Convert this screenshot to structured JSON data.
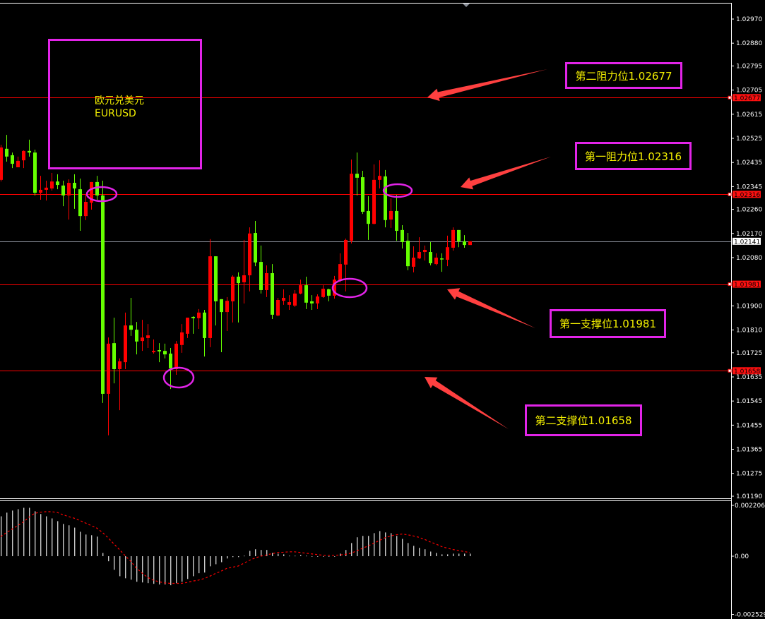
{
  "symbol": {
    "name_cn": "欧元兑美元",
    "name": "EURUSD"
  },
  "annotations": {
    "resistance_2": "第二阻力位1.02677",
    "resistance_1": "第一阻力位1.02316",
    "support_1": "第一支撑位1.01981",
    "support_2": "第二支撑位1.01658"
  },
  "colors": {
    "bull": "#ff0000",
    "bear": "#66ff00",
    "level_line": "#ff0000",
    "bid_line": "#8a8f99",
    "annotation_border": "#e224e8",
    "annotation_text": "#f2ee00",
    "macd_histogram": "#c8c8c8",
    "macd_signal": "#ff0000"
  },
  "price_axis": {
    "ticks": [
      "1.02970",
      "1.02880",
      "1.02795",
      "1.02705",
      "1.02615",
      "1.02525",
      "1.02435",
      "1.02345",
      "1.02260",
      "1.02170",
      "1.02080",
      "1.01900",
      "1.01810",
      "1.01725",
      "1.01635",
      "1.01545",
      "1.01455",
      "1.01365",
      "1.01275",
      "1.01190"
    ],
    "levels": [
      "1.02677",
      "1.02316",
      "1.01981",
      "1.01658"
    ],
    "current": "1.02141"
  },
  "macd_axis": {
    "ticks": [
      "0.002206",
      "0.00",
      "-0.002529"
    ]
  },
  "chart_data": {
    "type": "candlestick",
    "title": "",
    "ylim": [
      1.0119,
      1.0297
    ],
    "grid": false,
    "up_color_meaning": "red candles rise, green candles fall",
    "levels": [
      1.02677,
      1.02316,
      1.01981,
      1.01658
    ],
    "last_price": 1.02141,
    "ohlc": [
      [
        1.0237,
        1.02501,
        1.02364,
        1.02491
      ],
      [
        1.02486,
        1.02538,
        1.02438,
        1.02457
      ],
      [
        1.02462,
        1.02472,
        1.02414,
        1.0243
      ],
      [
        1.02417,
        1.02457,
        1.02417,
        1.02441
      ],
      [
        1.02443,
        1.0248,
        1.02414,
        1.02478
      ],
      [
        1.02478,
        1.0252,
        1.02457,
        1.02472
      ],
      [
        1.02472,
        1.02483,
        1.02312,
        1.02322
      ],
      [
        1.02322,
        1.02385,
        1.02296,
        1.02333
      ],
      [
        1.02333,
        1.02367,
        1.02293,
        1.02341
      ],
      [
        1.02338,
        1.02396,
        1.0233,
        1.02364
      ],
      [
        1.02364,
        1.02391,
        1.02335,
        1.02351
      ],
      [
        1.02349,
        1.02367,
        1.02272,
        1.02312
      ],
      [
        1.02312,
        1.02372,
        1.02222,
        1.02359
      ],
      [
        1.02359,
        1.02391,
        1.02262,
        1.02338
      ],
      [
        1.02335,
        1.02375,
        1.0218,
        1.02235
      ],
      [
        1.02235,
        1.02317,
        1.0222,
        1.02288
      ],
      [
        1.02285,
        1.02362,
        1.02259,
        1.02362
      ],
      [
        1.02362,
        1.02385,
        1.02296,
        1.02312
      ],
      [
        1.02312,
        1.02367,
        1.01538,
        1.01572
      ],
      [
        1.01572,
        1.01782,
        1.01417,
        1.01759
      ],
      [
        1.01761,
        1.01856,
        1.01611,
        1.01664
      ],
      [
        1.01664,
        1.01704,
        1.01511,
        1.01693
      ],
      [
        1.0169,
        1.01875,
        1.01664,
        1.01827
      ],
      [
        1.01827,
        1.0193,
        1.01788,
        1.01811
      ],
      [
        1.01811,
        1.0184,
        1.01719,
        1.01767
      ],
      [
        1.01769,
        1.01848,
        1.01732,
        1.01782
      ],
      [
        1.0178,
        1.01832,
        1.01743,
        1.0179
      ],
      [
        1.01727,
        1.01775,
        1.01722,
        1.01732
      ],
      [
        1.01735,
        1.01761,
        1.0169,
        1.0173
      ],
      [
        1.01732,
        1.01759,
        1.01704,
        1.01719
      ],
      [
        1.01722,
        1.01743,
        1.0159,
        1.01667
      ],
      [
        1.01664,
        1.01769,
        1.01643,
        1.01759
      ],
      [
        1.01754,
        1.01832,
        1.01725,
        1.01801
      ],
      [
        1.01796,
        1.01856,
        1.0178,
        1.01856
      ],
      [
        1.01859,
        1.01861,
        1.01796,
        1.01854
      ],
      [
        1.01854,
        1.01888,
        1.01814,
        1.01875
      ],
      [
        1.01875,
        1.01885,
        1.01711,
        1.0178
      ],
      [
        1.0178,
        1.02149,
        1.01746,
        1.02085
      ],
      [
        1.02085,
        1.02085,
        1.01827,
        1.01917
      ],
      [
        1.01925,
        1.01925,
        1.01727,
        1.01877
      ],
      [
        1.01877,
        1.01933,
        1.01806,
        1.01919
      ],
      [
        1.01917,
        1.02014,
        1.01838,
        1.02009
      ],
      [
        1.02009,
        1.02025,
        1.01838,
        1.01985
      ],
      [
        1.01988,
        1.02146,
        1.01909,
        1.02014
      ],
      [
        1.02014,
        1.02193,
        1.01954,
        1.0217
      ],
      [
        1.02172,
        1.02217,
        1.02048,
        1.02062
      ],
      [
        1.02064,
        1.02125,
        1.01946,
        1.01959
      ],
      [
        1.01959,
        1.02051,
        1.01933,
        1.02022
      ],
      [
        1.02022,
        1.02056,
        1.01851,
        1.01867
      ],
      [
        1.01864,
        1.0193,
        1.01861,
        1.01922
      ],
      [
        1.01919,
        1.01962,
        1.01904,
        1.0193
      ],
      [
        1.01904,
        1.0194,
        1.01885,
        1.01914
      ],
      [
        1.01901,
        1.01959,
        1.01896,
        1.01946
      ],
      [
        1.01946,
        1.01998,
        1.01943,
        1.01977
      ],
      [
        1.01977,
        1.02009,
        1.01888,
        1.01912
      ],
      [
        1.01917,
        1.0194,
        1.01885,
        1.01909
      ],
      [
        1.01909,
        1.01943,
        1.01888,
        1.01935
      ],
      [
        1.01933,
        1.01977,
        1.0193,
        1.01964
      ],
      [
        1.01962,
        1.01964,
        1.01917,
        1.01938
      ],
      [
        1.01938,
        1.02012,
        1.01927,
        1.01998
      ],
      [
        1.01996,
        1.02096,
        1.01988,
        1.02056
      ],
      [
        1.02054,
        1.02151,
        1.01954,
        1.02146
      ],
      [
        1.02143,
        1.02446,
        1.02133,
        1.02393
      ],
      [
        1.02393,
        1.02472,
        1.02312,
        1.02378
      ],
      [
        1.0238,
        1.02404,
        1.02243,
        1.02251
      ],
      [
        1.02254,
        1.02309,
        1.02146,
        1.02206
      ],
      [
        1.02206,
        1.02428,
        1.02204,
        1.0237
      ],
      [
        1.0237,
        1.02443,
        1.02338,
        1.02385
      ],
      [
        1.02383,
        1.02407,
        1.02193,
        1.0222
      ],
      [
        1.02222,
        1.02301,
        1.02191,
        1.02254
      ],
      [
        1.02254,
        1.02314,
        1.02143,
        1.0218
      ],
      [
        1.02183,
        1.02201,
        1.02114,
        1.02138
      ],
      [
        1.02143,
        1.02172,
        1.02033,
        1.02048
      ],
      [
        1.02046,
        1.02122,
        1.02025,
        1.0208
      ],
      [
        1.02077,
        1.02156,
        1.02075,
        1.02101
      ],
      [
        1.02101,
        1.02125,
        1.02069,
        1.02109
      ],
      [
        1.02101,
        1.02138,
        1.02051,
        1.02059
      ],
      [
        1.02056,
        1.02096,
        1.02051,
        1.0208
      ],
      [
        1.02077,
        1.02096,
        1.02027,
        1.02075
      ],
      [
        1.02072,
        1.02162,
        1.02048,
        1.02119
      ],
      [
        1.02117,
        1.02193,
        1.02106,
        1.02183
      ],
      [
        1.02183,
        1.02183,
        1.02119,
        1.02141
      ],
      [
        1.02141,
        1.02164,
        1.02117,
        1.02127
      ],
      [
        1.02127,
        1.02141,
        1.02127,
        1.02141
      ]
    ],
    "macd": {
      "ylim": [
        -0.002529,
        0.002206
      ],
      "histogram": [
        0.00173,
        0.00189,
        0.00198,
        0.00204,
        0.0021,
        0.0021,
        0.00195,
        0.00183,
        0.00173,
        0.00164,
        0.00152,
        0.0014,
        0.00134,
        0.00124,
        0.00106,
        0.00094,
        0.00091,
        0.00085,
        0.00014,
        -0.00022,
        -0.00059,
        -0.00087,
        -0.00096,
        -0.00102,
        -0.00111,
        -0.00114,
        -0.00117,
        -0.0012,
        -0.00123,
        -0.00123,
        -0.00126,
        -0.00117,
        -0.00111,
        -0.00099,
        -0.00087,
        -0.00074,
        -0.00071,
        -0.00044,
        -0.00035,
        -0.00026,
        -0.0001,
        -4e-05,
        -4e-05,
        2e-05,
        0.00023,
        0.0003,
        0.00027,
        0.00027,
        0.00014,
        0.00011,
        8e-05,
        2e-05,
        2e-05,
        5e-05,
        2e-05,
        0,
        -1e-05,
        0,
        0,
        -1e-05,
        0.00011,
        0.00027,
        0.00057,
        0.00082,
        0.00088,
        0.00088,
        0.001,
        0.00109,
        0.00103,
        0.001,
        0.00088,
        0.00075,
        0.00057,
        0.00045,
        0.00036,
        0.0003,
        0.0002,
        0.00014,
        8e-05,
        8e-05,
        0.00011,
        0.00011,
        0.00011,
        0.00011
      ],
      "signal": [
        0.00085,
        0.00102,
        0.00117,
        0.00133,
        0.00148,
        0.00169,
        0.00186,
        0.00191,
        0.00193,
        0.00193,
        0.0019,
        0.0018,
        0.00172,
        0.00165,
        0.00155,
        0.00144,
        0.00133,
        0.00122,
        0.00103,
        0.0008,
        0.00054,
        0.00029,
        3e-05,
        -0.00022,
        -0.00051,
        -0.00073,
        -0.00092,
        -0.00104,
        -0.00111,
        -0.00116,
        -0.00118,
        -0.00118,
        -0.00118,
        -0.00114,
        -0.00108,
        -0.00104,
        -0.00097,
        -0.00087,
        -0.00075,
        -0.00065,
        -0.00053,
        -0.00048,
        -0.00043,
        -0.00031,
        -0.00018,
        -8e-05,
        0,
        5e-05,
        0.00011,
        0.00016,
        0.00017,
        0.00019,
        0.00019,
        0.00016,
        0.00013,
        0.0001,
        7e-05,
        4e-05,
        4e-05,
        4e-05,
        5e-05,
        8e-05,
        0.00013,
        0.00023,
        0.00034,
        0.00044,
        0.00056,
        0.00068,
        0.0008,
        0.00088,
        0.00093,
        0.00096,
        0.00093,
        0.00088,
        0.00082,
        0.00073,
        0.00062,
        0.00053,
        0.00042,
        0.00035,
        0.00029,
        0.00025,
        0.0002,
        0.00016
      ]
    }
  }
}
